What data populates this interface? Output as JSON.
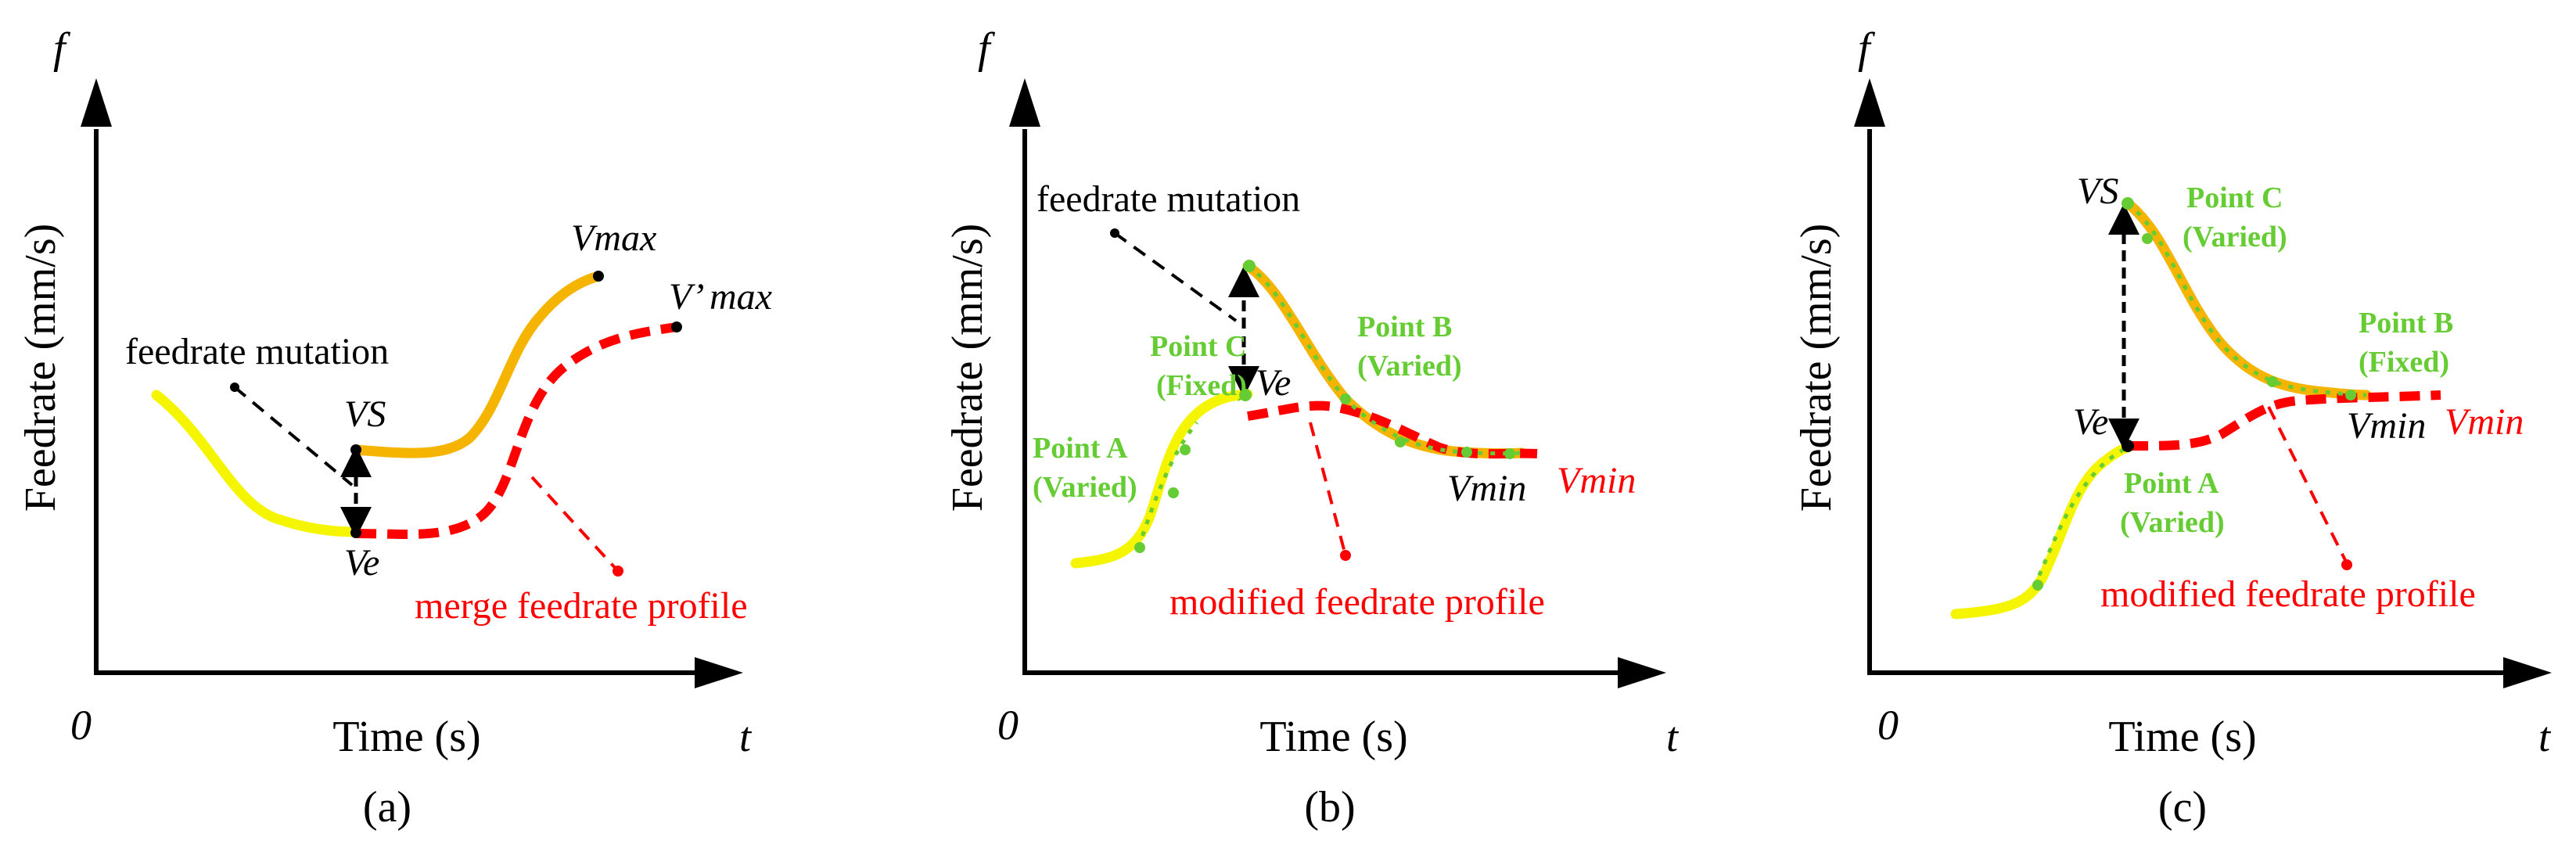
{
  "colors": {
    "axis": "#000000",
    "yellow": "#f5f500",
    "orange": "#f5b400",
    "red": "#ff0000",
    "green": "#66cc33"
  },
  "panels": [
    {
      "caption": "(a)",
      "origin": "0",
      "y_axis_symbol": "f",
      "x_axis_symbol": "t",
      "y_label": "Feedrate (mm/s)",
      "x_label": "Time (s)",
      "mutation_label": "feedrate mutation",
      "vs_label": "VS",
      "ve_label": "Ve",
      "vmax_label": "Vmax",
      "vmax_prime_label": "V’ max",
      "profile_label": "merge feedrate profile"
    },
    {
      "caption": "(b)",
      "origin": "0",
      "y_axis_symbol": "f",
      "x_axis_symbol": "t",
      "y_label": "Feedrate (mm/s)",
      "x_label": "Time (s)",
      "mutation_label": "feedrate mutation",
      "ve_label": "Ve",
      "vmin_black_label": "Vmin",
      "vmin_red_label": "Vmin",
      "point_a": [
        "Point A",
        "(Varied)"
      ],
      "point_b": [
        "Point B",
        "(Varied)"
      ],
      "point_c": [
        "Point C",
        "(Fixed)"
      ],
      "profile_label": "modified feedrate profile"
    },
    {
      "caption": "(c)",
      "origin": "0",
      "y_axis_symbol": "f",
      "x_axis_symbol": "t",
      "y_label": "Feedrate (mm/s)",
      "x_label": "Time (s)",
      "vs_label": "VS",
      "ve_label": "Ve",
      "vmin_black_label": "Vmin",
      "vmin_red_label": "Vmin",
      "point_a": [
        "Point A",
        "(Varied)"
      ],
      "point_b": [
        "Point B",
        "(Fixed)"
      ],
      "point_c": [
        "Point C",
        "(Varied)"
      ],
      "profile_label": "modified feedrate profile"
    }
  ]
}
